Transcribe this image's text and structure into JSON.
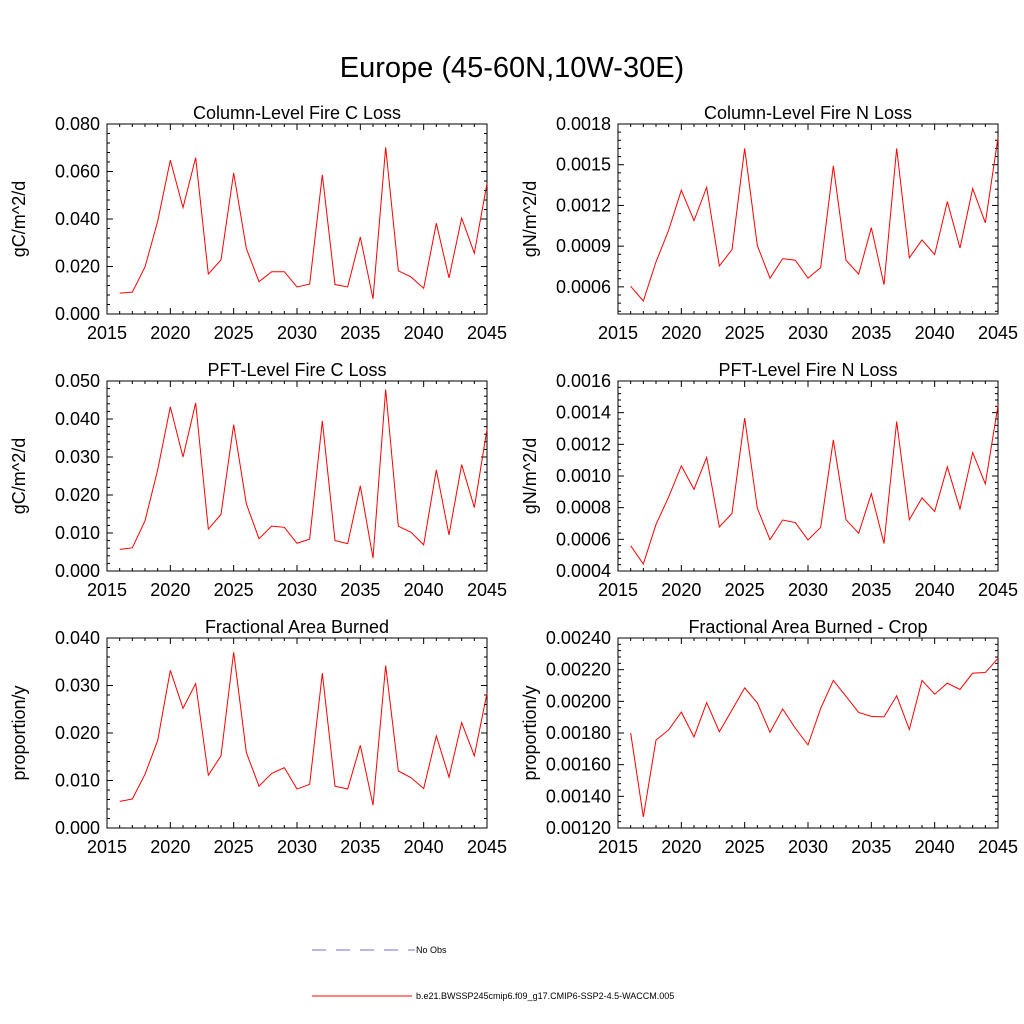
{
  "page_title": "Europe (45-60N,10W-30E)",
  "colors": {
    "series": "#ff0000",
    "no_obs": "#6f6fd9",
    "axis": "#000000"
  },
  "legend": {
    "no_obs_label": "No Obs",
    "model_label": "b.e21.BWSSP245cmip6.f09_g17.CMIP6-SSP2-4.5-WACCM.005"
  },
  "chart_data": [
    {
      "type": "line",
      "title": "Column-Level Fire C Loss",
      "xlabel": "",
      "ylabel": "gC/m^2/d",
      "xlim": [
        2015,
        2045
      ],
      "ylim": [
        0,
        0.08
      ],
      "xticks": [
        "2015",
        "2020",
        "2025",
        "2030",
        "2035",
        "2040",
        "2045"
      ],
      "xtick_values": [
        2015,
        2020,
        2025,
        2030,
        2035,
        2040,
        2045
      ],
      "yticks": [
        "0.000",
        "0.020",
        "0.040",
        "0.060",
        "0.080"
      ],
      "ytick_values": [
        0,
        0.02,
        0.04,
        0.06,
        0.08
      ],
      "series": [
        {
          "name": "b.e21.BWSSP245cmip6.f09_g17.CMIP6-SSP2-4.5-WACCM.005",
          "x": [
            2016,
            2017,
            2018,
            2019,
            2020,
            2021,
            2022,
            2023,
            2024,
            2025,
            2026,
            2027,
            2028,
            2029,
            2030,
            2031,
            2032,
            2033,
            2034,
            2035,
            2036,
            2037,
            2038,
            2039,
            2040,
            2041,
            2042,
            2043,
            2044,
            2045
          ],
          "y": [
            0.0088,
            0.0092,
            0.0198,
            0.039,
            0.0648,
            0.0448,
            0.0658,
            0.0168,
            0.0228,
            0.0594,
            0.0276,
            0.0136,
            0.0178,
            0.0178,
            0.0114,
            0.0126,
            0.0586,
            0.0124,
            0.0114,
            0.0324,
            0.0064,
            0.0702,
            0.0182,
            0.0156,
            0.0108,
            0.0382,
            0.0152,
            0.0404,
            0.0256,
            0.055
          ]
        }
      ]
    },
    {
      "type": "line",
      "title": "Column-Level Fire N Loss",
      "xlabel": "",
      "ylabel": "gN/m^2/d",
      "xlim": [
        2015,
        2045
      ],
      "ylim": [
        0.0004,
        0.0018
      ],
      "xticks": [
        "2015",
        "2020",
        "2025",
        "2030",
        "2035",
        "2040",
        "2045"
      ],
      "xtick_values": [
        2015,
        2020,
        2025,
        2030,
        2035,
        2040,
        2045
      ],
      "yticks": [
        "0.0006",
        "0.0009",
        "0.0012",
        "0.0015",
        "0.0018"
      ],
      "ytick_values": [
        0.0006,
        0.0009,
        0.0012,
        0.0015,
        0.0018
      ],
      "series": [
        {
          "name": "b.e21.BWSSP245cmip6.f09_g17.CMIP6-SSP2-4.5-WACCM.005",
          "x": [
            2016,
            2017,
            2018,
            2019,
            2020,
            2021,
            2022,
            2023,
            2024,
            2025,
            2026,
            2027,
            2028,
            2029,
            2030,
            2031,
            2032,
            2033,
            2034,
            2035,
            2036,
            2037,
            2038,
            2039,
            2040,
            2041,
            2042,
            2043,
            2044,
            2045
          ],
          "y": [
            0.000604,
            0.000496,
            0.000784,
            0.001018,
            0.001312,
            0.001088,
            0.001334,
            0.000754,
            0.000874,
            0.00162,
            0.000904,
            0.000664,
            0.000808,
            0.000796,
            0.000664,
            0.000742,
            0.001492,
            0.000796,
            0.000694,
            0.001036,
            0.000616,
            0.00162,
            0.000814,
            0.000946,
            0.000838,
            0.001228,
            0.000886,
            0.001324,
            0.001072,
            0.0017
          ]
        }
      ]
    },
    {
      "type": "line",
      "title": "PFT-Level Fire C Loss",
      "xlabel": "",
      "ylabel": "gC/m^2/d",
      "xlim": [
        2015,
        2045
      ],
      "ylim": [
        0,
        0.05
      ],
      "xticks": [
        "2015",
        "2020",
        "2025",
        "2030",
        "2035",
        "2040",
        "2045"
      ],
      "xtick_values": [
        2015,
        2020,
        2025,
        2030,
        2035,
        2040,
        2045
      ],
      "yticks": [
        "0.000",
        "0.010",
        "0.020",
        "0.030",
        "0.040",
        "0.050"
      ],
      "ytick_values": [
        0,
        0.01,
        0.02,
        0.03,
        0.04,
        0.05
      ],
      "series": [
        {
          "name": "b.e21.BWSSP245cmip6.f09_g17.CMIP6-SSP2-4.5-WACCM.005",
          "x": [
            2016,
            2017,
            2018,
            2019,
            2020,
            2021,
            2022,
            2023,
            2024,
            2025,
            2026,
            2027,
            2028,
            2029,
            2030,
            2031,
            2032,
            2033,
            2034,
            2035,
            2036,
            2037,
            2038,
            2039,
            2040,
            2041,
            2042,
            2043,
            2044,
            2045
          ],
          "y": [
            0.0057,
            0.0061,
            0.0132,
            0.0266,
            0.0432,
            0.03,
            0.0442,
            0.011,
            0.0149,
            0.0385,
            0.0177,
            0.0085,
            0.0118,
            0.0115,
            0.0073,
            0.0084,
            0.0395,
            0.008,
            0.0072,
            0.0224,
            0.0034,
            0.0478,
            0.0118,
            0.0102,
            0.0069,
            0.0266,
            0.0095,
            0.028,
            0.0167,
            0.0373
          ]
        }
      ]
    },
    {
      "type": "line",
      "title": "PFT-Level Fire N Loss",
      "xlabel": "",
      "ylabel": "gN/m^2/d",
      "xlim": [
        2015,
        2045
      ],
      "ylim": [
        0.0004,
        0.0016
      ],
      "xticks": [
        "2015",
        "2020",
        "2025",
        "2030",
        "2035",
        "2040",
        "2045"
      ],
      "xtick_values": [
        2015,
        2020,
        2025,
        2030,
        2035,
        2040,
        2045
      ],
      "yticks": [
        "0.0004",
        "0.0006",
        "0.0008",
        "0.0010",
        "0.0012",
        "0.0014",
        "0.0016"
      ],
      "ytick_values": [
        0.0004,
        0.0006,
        0.0008,
        0.001,
        0.0012,
        0.0014,
        0.0016
      ],
      "series": [
        {
          "name": "b.e21.BWSSP245cmip6.f09_g17.CMIP6-SSP2-4.5-WACCM.005",
          "x": [
            2016,
            2017,
            2018,
            2019,
            2020,
            2021,
            2022,
            2023,
            2024,
            2025,
            2026,
            2027,
            2028,
            2029,
            2030,
            2031,
            2032,
            2033,
            2034,
            2035,
            2036,
            2037,
            2038,
            2039,
            2040,
            2041,
            2042,
            2043,
            2044,
            2045
          ],
          "y": [
            0.00056,
            0.000444,
            0.000694,
            0.000868,
            0.001064,
            0.000916,
            0.001118,
            0.000678,
            0.000764,
            0.001366,
            0.000796,
            0.000598,
            0.000722,
            0.000706,
            0.000596,
            0.000676,
            0.001228,
            0.000724,
            0.000638,
            0.000888,
            0.000574,
            0.001344,
            0.000724,
            0.000862,
            0.000776,
            0.001058,
            0.000792,
            0.001148,
            0.00095,
            0.001446
          ]
        }
      ]
    },
    {
      "type": "line",
      "title": "Fractional Area Burned",
      "xlabel": "",
      "ylabel": "proportion/y",
      "xlim": [
        2015,
        2045
      ],
      "ylim": [
        0,
        0.04
      ],
      "xticks": [
        "2015",
        "2020",
        "2025",
        "2030",
        "2035",
        "2040",
        "2045"
      ],
      "xtick_values": [
        2015,
        2020,
        2025,
        2030,
        2035,
        2040,
        2045
      ],
      "yticks": [
        "0.000",
        "0.010",
        "0.020",
        "0.030",
        "0.040"
      ],
      "ytick_values": [
        0,
        0.01,
        0.02,
        0.03,
        0.04
      ],
      "series": [
        {
          "name": "b.e21.BWSSP245cmip6.f09_g17.CMIP6-SSP2-4.5-WACCM.005",
          "x": [
            2016,
            2017,
            2018,
            2019,
            2020,
            2021,
            2022,
            2023,
            2024,
            2025,
            2026,
            2027,
            2028,
            2029,
            2030,
            2031,
            2032,
            2033,
            2034,
            2035,
            2036,
            2037,
            2038,
            2039,
            2040,
            2041,
            2042,
            2043,
            2044,
            2045
          ],
          "y": [
            0.0056,
            0.0061,
            0.0113,
            0.0184,
            0.0332,
            0.0252,
            0.0304,
            0.0111,
            0.0152,
            0.037,
            0.0159,
            0.0088,
            0.0115,
            0.0127,
            0.0082,
            0.0092,
            0.0326,
            0.0088,
            0.0082,
            0.0174,
            0.0048,
            0.0342,
            0.012,
            0.0106,
            0.0083,
            0.0194,
            0.0107,
            0.0222,
            0.0152,
            0.0284
          ]
        }
      ]
    },
    {
      "type": "line",
      "title": "Fractional Area Burned - Crop",
      "xlabel": "",
      "ylabel": "proportion/y",
      "xlim": [
        2015,
        2045
      ],
      "ylim": [
        0.0012,
        0.0024
      ],
      "xticks": [
        "2015",
        "2020",
        "2025",
        "2030",
        "2035",
        "2040",
        "2045"
      ],
      "xtick_values": [
        2015,
        2020,
        2025,
        2030,
        2035,
        2040,
        2045
      ],
      "yticks": [
        "0.00120",
        "0.00140",
        "0.00160",
        "0.00180",
        "0.00200",
        "0.00220",
        "0.00240"
      ],
      "ytick_values": [
        0.0012,
        0.0014,
        0.0016,
        0.0018,
        0.002,
        0.0022,
        0.0024
      ],
      "series": [
        {
          "name": "b.e21.BWSSP245cmip6.f09_g17.CMIP6-SSP2-4.5-WACCM.005",
          "x": [
            2016,
            2017,
            2018,
            2019,
            2020,
            2021,
            2022,
            2023,
            2024,
            2025,
            2026,
            2027,
            2028,
            2029,
            2030,
            2031,
            2032,
            2033,
            2034,
            2035,
            2036,
            2037,
            2038,
            2039,
            2040,
            2041,
            2042,
            2043,
            2044,
            2045
          ],
          "y": [
            0.0018,
            0.00127,
            0.001755,
            0.00182,
            0.001932,
            0.001775,
            0.001992,
            0.001808,
            0.001945,
            0.002085,
            0.00199,
            0.001805,
            0.001952,
            0.00183,
            0.001725,
            0.001955,
            0.002132,
            0.002032,
            0.00193,
            0.001905,
            0.001902,
            0.002035,
            0.001822,
            0.002132,
            0.002045,
            0.002115,
            0.002075,
            0.002178,
            0.002182,
            0.002272
          ]
        }
      ]
    }
  ]
}
